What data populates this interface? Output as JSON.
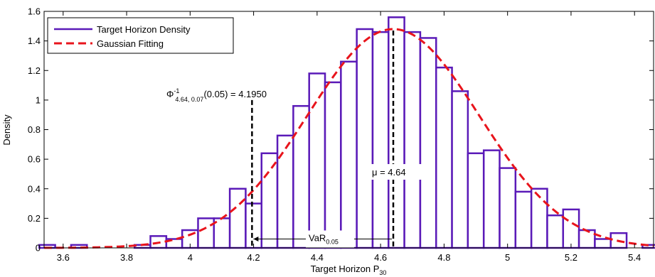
{
  "chart_data": {
    "type": "bar",
    "xlabel": "Target Horizon P",
    "xlabel_sub": "30",
    "ylabel": "Density",
    "xlim": [
      3.54,
      5.46
    ],
    "ylim": [
      0,
      1.6
    ],
    "xticks": [
      "3.6",
      "3.8",
      "4",
      "4.2",
      "4.4",
      "4.6",
      "4.8",
      "5",
      "5.2",
      "5.4"
    ],
    "yticks": [
      "0",
      "0.2",
      "0.4",
      "0.6",
      "0.8",
      "1",
      "1.2",
      "1.4",
      "1.6"
    ],
    "grid": false,
    "legend_position": "top-left",
    "colors": {
      "histogram": "#5a1ab8",
      "fit": "#e8141c",
      "annotation": "#000000"
    },
    "series": [
      {
        "name": "Target Horizon Density",
        "type": "histogram",
        "bin_width": 0.05,
        "bins": [
          {
            "x": 3.55,
            "y": 0.02
          },
          {
            "x": 3.6,
            "y": 0.0
          },
          {
            "x": 3.65,
            "y": 0.02
          },
          {
            "x": 3.7,
            "y": 0.0
          },
          {
            "x": 3.75,
            "y": 0.0
          },
          {
            "x": 3.8,
            "y": 0.0
          },
          {
            "x": 3.85,
            "y": 0.02
          },
          {
            "x": 3.9,
            "y": 0.08
          },
          {
            "x": 3.95,
            "y": 0.06
          },
          {
            "x": 4.0,
            "y": 0.12
          },
          {
            "x": 4.05,
            "y": 0.2
          },
          {
            "x": 4.1,
            "y": 0.2
          },
          {
            "x": 4.15,
            "y": 0.4
          },
          {
            "x": 4.2,
            "y": 0.3
          },
          {
            "x": 4.25,
            "y": 0.64
          },
          {
            "x": 4.3,
            "y": 0.76
          },
          {
            "x": 4.35,
            "y": 0.96
          },
          {
            "x": 4.4,
            "y": 1.18
          },
          {
            "x": 4.45,
            "y": 1.12
          },
          {
            "x": 4.5,
            "y": 1.26
          },
          {
            "x": 4.55,
            "y": 1.48
          },
          {
            "x": 4.6,
            "y": 1.46
          },
          {
            "x": 4.65,
            "y": 1.56
          },
          {
            "x": 4.7,
            "y": 1.46
          },
          {
            "x": 4.75,
            "y": 1.42
          },
          {
            "x": 4.8,
            "y": 1.22
          },
          {
            "x": 4.85,
            "y": 1.06
          },
          {
            "x": 4.9,
            "y": 0.64
          },
          {
            "x": 4.95,
            "y": 0.66
          },
          {
            "x": 5.0,
            "y": 0.54
          },
          {
            "x": 5.05,
            "y": 0.38
          },
          {
            "x": 5.1,
            "y": 0.4
          },
          {
            "x": 5.15,
            "y": 0.22
          },
          {
            "x": 5.2,
            "y": 0.26
          },
          {
            "x": 5.25,
            "y": 0.12
          },
          {
            "x": 5.3,
            "y": 0.06
          },
          {
            "x": 5.35,
            "y": 0.1
          },
          {
            "x": 5.4,
            "y": 0.0
          },
          {
            "x": 5.45,
            "y": 0.02
          }
        ]
      },
      {
        "name": "Gaussian Fitting",
        "type": "line",
        "mu": 4.64,
        "sigma": 0.27,
        "peak": 1.48
      }
    ],
    "annotations": {
      "quantile_x": 4.195,
      "quantile_top_y": 1.0,
      "quantile_phi": "Φ",
      "quantile_sub": "4.64, 0.07",
      "quantile_sup": "-1",
      "quantile_rest": "(0.05) = 4.1950",
      "mu_x": 4.64,
      "mu_top_y": 1.47,
      "mu_label": "μ = 4.64",
      "var_y": 0.06,
      "var_label": "VaR",
      "var_sub": "0.05"
    }
  }
}
